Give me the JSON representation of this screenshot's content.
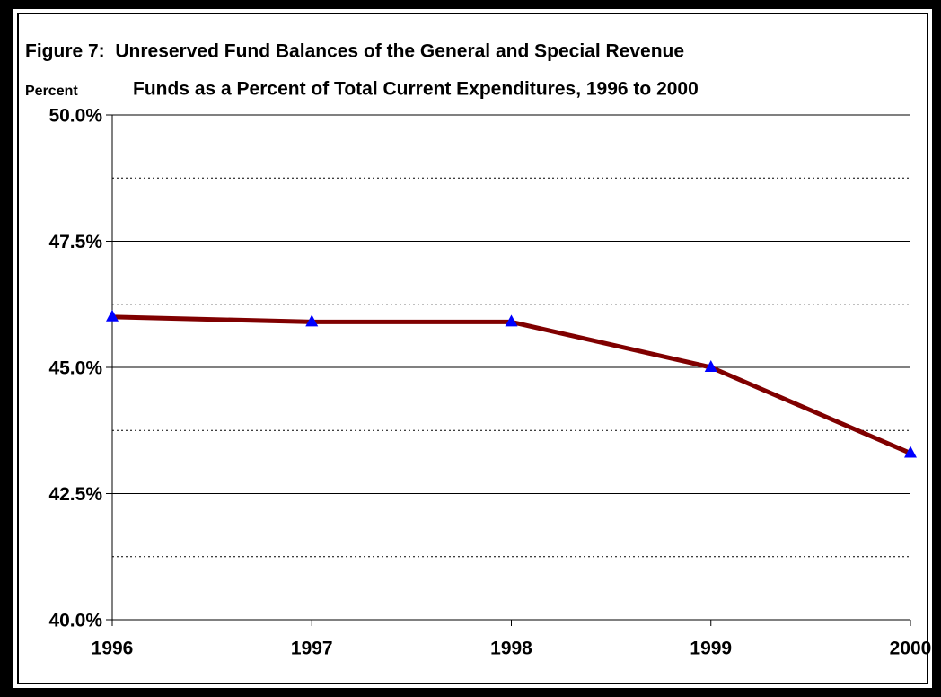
{
  "chart_data": {
    "type": "line",
    "title": [
      "Figure 7:  Unreserved Fund Balances of the General and Special Revenue",
      "Funds as a Percent of Total Current Expenditures, 1996 to 2000"
    ],
    "y_label": "Percent",
    "categories": [
      "1996",
      "1997",
      "1998",
      "1999",
      "2000"
    ],
    "values": [
      46.0,
      45.9,
      45.9,
      45.0,
      43.3
    ],
    "color": "#800000",
    "marker_color": "#0000ff",
    "marker": "triangle",
    "ylim": [
      40,
      50
    ],
    "yticks": [
      {
        "value": 40,
        "label": "40.0%"
      },
      {
        "value": 42.5,
        "label": "42.5%"
      },
      {
        "value": 45,
        "label": "45.0%"
      },
      {
        "value": 47.5,
        "label": "47.5%"
      },
      {
        "value": 50,
        "label": "50.0%"
      }
    ],
    "minor_yticks": [
      41.25,
      43.75,
      46.25,
      48.75
    ],
    "grid": true
  }
}
